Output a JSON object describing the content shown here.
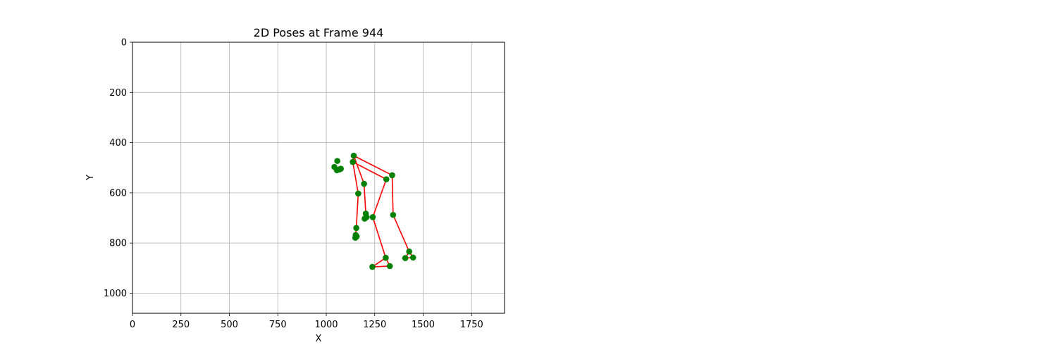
{
  "chart_data": {
    "type": "scatter",
    "title": "2D Poses at Frame 944",
    "xlabel": "X",
    "ylabel": "Y",
    "xlim": [
      0,
      1920
    ],
    "ylim": [
      1080,
      0
    ],
    "y_inverted": true,
    "grid": true,
    "xticks": [
      0,
      250,
      500,
      750,
      1000,
      1250,
      1500,
      1750
    ],
    "yticks": [
      0,
      200,
      400,
      600,
      800,
      1000
    ],
    "colors": {
      "points": "#008000",
      "lines": "#ff0000",
      "grid": "#b0b0b0"
    },
    "keypoints": [
      {
        "x": 1142,
        "y": 452
      },
      {
        "x": 1137,
        "y": 477
      },
      {
        "x": 1057,
        "y": 473
      },
      {
        "x": 1042,
        "y": 497
      },
      {
        "x": 1055,
        "y": 510
      },
      {
        "x": 1075,
        "y": 504
      },
      {
        "x": 1068,
        "y": 507
      },
      {
        "x": 1340,
        "y": 530
      },
      {
        "x": 1310,
        "y": 546
      },
      {
        "x": 1195,
        "y": 564
      },
      {
        "x": 1165,
        "y": 603
      },
      {
        "x": 1345,
        "y": 688
      },
      {
        "x": 1204,
        "y": 683
      },
      {
        "x": 1208,
        "y": 697
      },
      {
        "x": 1198,
        "y": 703
      },
      {
        "x": 1240,
        "y": 697
      },
      {
        "x": 1155,
        "y": 740
      },
      {
        "x": 1152,
        "y": 768
      },
      {
        "x": 1157,
        "y": 774
      },
      {
        "x": 1150,
        "y": 779
      },
      {
        "x": 1428,
        "y": 834
      },
      {
        "x": 1307,
        "y": 859
      },
      {
        "x": 1408,
        "y": 860
      },
      {
        "x": 1448,
        "y": 858
      },
      {
        "x": 1328,
        "y": 892
      },
      {
        "x": 1238,
        "y": 895
      }
    ],
    "skeleton_segments": [
      [
        [
          1142,
          452
        ],
        [
          1340,
          530
        ]
      ],
      [
        [
          1137,
          477
        ],
        [
          1310,
          546
        ]
      ],
      [
        [
          1142,
          452
        ],
        [
          1137,
          477
        ]
      ],
      [
        [
          1340,
          530
        ],
        [
          1345,
          688
        ]
      ],
      [
        [
          1345,
          688
        ],
        [
          1428,
          834
        ]
      ],
      [
        [
          1428,
          834
        ],
        [
          1408,
          860
        ]
      ],
      [
        [
          1428,
          834
        ],
        [
          1448,
          858
        ]
      ],
      [
        [
          1408,
          860
        ],
        [
          1448,
          858
        ]
      ],
      [
        [
          1310,
          546
        ],
        [
          1240,
          697
        ]
      ],
      [
        [
          1240,
          697
        ],
        [
          1307,
          859
        ]
      ],
      [
        [
          1307,
          859
        ],
        [
          1328,
          892
        ]
      ],
      [
        [
          1307,
          859
        ],
        [
          1238,
          895
        ]
      ],
      [
        [
          1238,
          895
        ],
        [
          1328,
          892
        ]
      ],
      [
        [
          1142,
          452
        ],
        [
          1195,
          564
        ]
      ],
      [
        [
          1195,
          564
        ],
        [
          1204,
          683
        ]
      ],
      [
        [
          1204,
          683
        ],
        [
          1198,
          703
        ]
      ],
      [
        [
          1137,
          477
        ],
        [
          1165,
          603
        ]
      ],
      [
        [
          1165,
          603
        ],
        [
          1155,
          740
        ]
      ],
      [
        [
          1155,
          740
        ],
        [
          1152,
          768
        ]
      ],
      [
        [
          1152,
          768
        ],
        [
          1150,
          779
        ]
      ]
    ]
  }
}
